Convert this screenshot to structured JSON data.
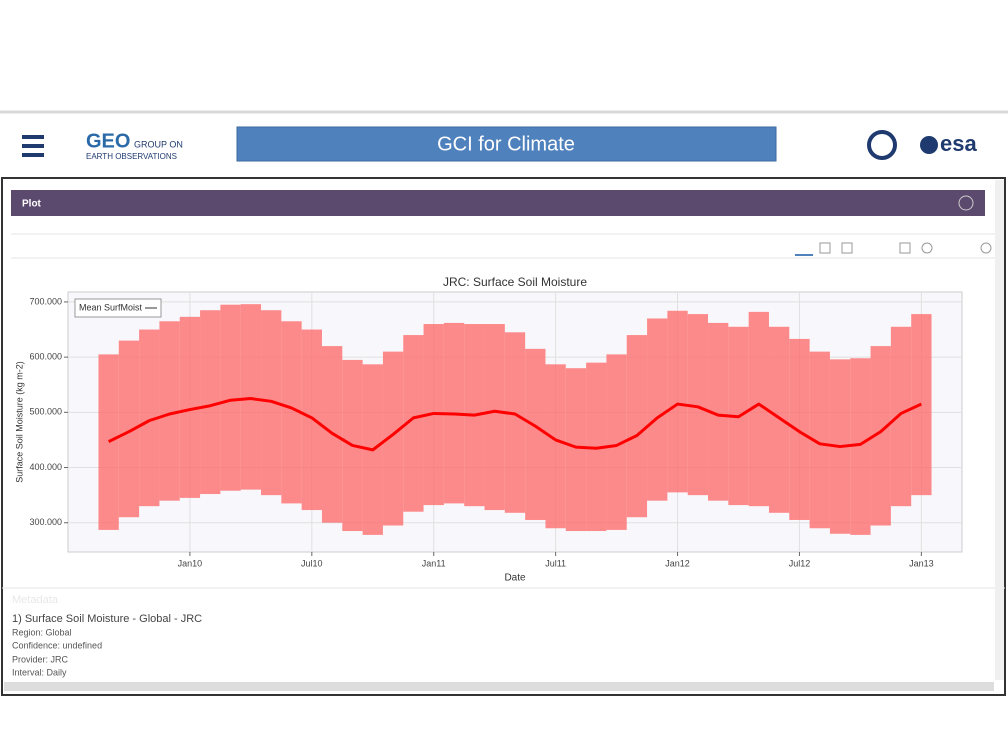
{
  "header": {
    "logo": "GEO",
    "org_line1": "GROUP ON",
    "org_line2": "EARTH OBSERVATIONS",
    "banner": "GCI for Climate",
    "partner": "esa"
  },
  "panel": {
    "title": "Plot"
  },
  "chart_data": {
    "type": "line",
    "title": "JRC: Surface Soil Moisture",
    "x_label": "Date",
    "y_label": "Surface Soil Moisture (kg m-2)",
    "x": [
      "2009-09",
      "2009-10",
      "2009-11",
      "2009-12",
      "2010-01",
      "2010-02",
      "2010-03",
      "2010-04",
      "2010-05",
      "2010-06",
      "2010-07",
      "2010-08",
      "2010-09",
      "2010-10",
      "2010-11",
      "2010-12",
      "2011-01",
      "2011-02",
      "2011-03",
      "2011-04",
      "2011-05",
      "2011-06",
      "2011-07",
      "2011-08",
      "2011-09",
      "2011-10",
      "2011-11",
      "2011-12",
      "2012-01",
      "2012-02",
      "2012-03",
      "2012-04",
      "2012-05",
      "2012-06",
      "2012-07",
      "2012-08",
      "2012-09",
      "2012-10",
      "2012-11",
      "2012-12",
      "2013-01"
    ],
    "series": [
      {
        "name": "Mean SurfMoist",
        "color": "#ff0000",
        "values": [
          447,
          465,
          485,
          497,
          505,
          512,
          522,
          525,
          520,
          508,
          490,
          462,
          440,
          432,
          460,
          490,
          498,
          497,
          495,
          502,
          497,
          475,
          450,
          437,
          435,
          440,
          458,
          490,
          515,
          510,
          495,
          492,
          515,
          490,
          465,
          443,
          438,
          442,
          465,
          498,
          515
        ]
      }
    ],
    "band": {
      "color": "#ff6666",
      "upper": [
        605,
        630,
        650,
        665,
        673,
        685,
        695,
        696,
        685,
        665,
        650,
        620,
        595,
        587,
        610,
        640,
        660,
        662,
        660,
        660,
        645,
        615,
        587,
        580,
        590,
        605,
        640,
        670,
        684,
        678,
        662,
        655,
        682,
        655,
        633,
        610,
        596,
        598,
        620,
        655,
        678
      ],
      "lower": [
        287,
        310,
        330,
        340,
        345,
        352,
        358,
        360,
        350,
        335,
        323,
        300,
        285,
        278,
        295,
        320,
        332,
        335,
        330,
        323,
        318,
        305,
        290,
        285,
        285,
        287,
        310,
        340,
        355,
        350,
        340,
        332,
        330,
        318,
        305,
        290,
        280,
        278,
        295,
        330,
        350
      ]
    },
    "xlim": [
      "2009-07",
      "2013-03"
    ],
    "xticks": [
      {
        "value": "2010-01",
        "label": "Jan10"
      },
      {
        "value": "2010-07",
        "label": "Jul10"
      },
      {
        "value": "2011-01",
        "label": "Jan11"
      },
      {
        "value": "2011-07",
        "label": "Jul11"
      },
      {
        "value": "2012-01",
        "label": "Jan12"
      },
      {
        "value": "2012-07",
        "label": "Jul12"
      },
      {
        "value": "2013-01",
        "label": "Jan13"
      }
    ],
    "ylim": [
      247,
      718
    ],
    "yticks": [
      {
        "value": 300,
        "label": "300.000"
      },
      {
        "value": 400,
        "label": "400.000"
      },
      {
        "value": 500,
        "label": "500.000"
      },
      {
        "value": 600,
        "label": "600.000"
      },
      {
        "value": 700,
        "label": "700.000"
      }
    ],
    "grid": true,
    "legend": "upper left"
  },
  "metadata": {
    "heading": "Metadata",
    "item": "1) Surface Soil Moisture - Global - JRC",
    "region": "Region: Global",
    "confidence": "Confidence: undefined",
    "provider": "Provider: JRC",
    "interval": "Interval: Daily"
  }
}
